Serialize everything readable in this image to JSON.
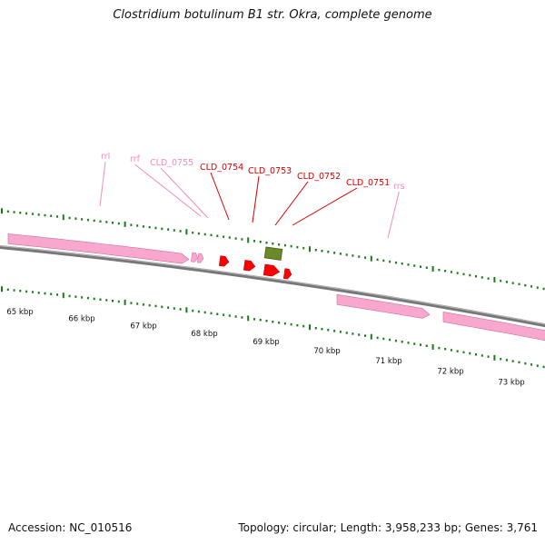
{
  "title": "Clostridium botulinum B1 str. Okra, complete genome",
  "footer": {
    "accession": "Accession: NC_010516",
    "summary": "Topology: circular; Length: 3,958,233 bp; Genes: 3,761"
  },
  "colors": {
    "rna_feature": "#f7a8cc",
    "cds_feature": "#ff0000",
    "rna_label": "#f08cbf",
    "cds_label": "#d40000",
    "misc_feature": "#6a8a2a",
    "tick": "#1a7a1a",
    "backbone": "#777777"
  },
  "scale_labels": [
    "65 kbp",
    "66 kbp",
    "67 kbp",
    "68 kbp",
    "69 kbp",
    "70 kbp",
    "71 kbp",
    "72 kbp",
    "73 kbp"
  ],
  "feature_labels": [
    {
      "text": "rrl",
      "type": "rna"
    },
    {
      "text": "rrf",
      "type": "rna"
    },
    {
      "text": "CLD_0755",
      "type": "rna"
    },
    {
      "text": "CLD_0754",
      "type": "cds"
    },
    {
      "text": "CLD_0753",
      "type": "cds"
    },
    {
      "text": "CLD_0752",
      "type": "cds"
    },
    {
      "text": "CLD_0751",
      "type": "cds"
    },
    {
      "text": "rrs",
      "type": "rna"
    }
  ]
}
